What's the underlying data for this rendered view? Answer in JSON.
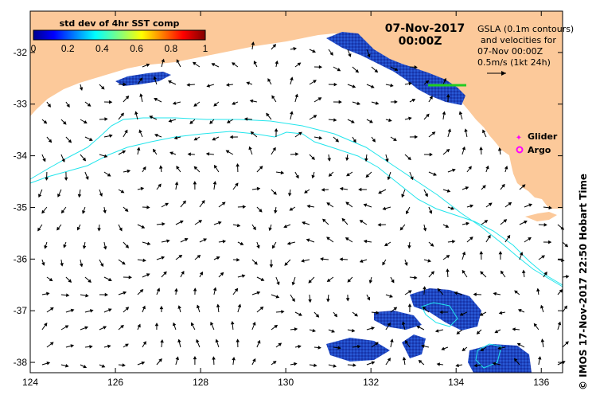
{
  "map": {
    "lon_ticks": [
      "124",
      "126",
      "128",
      "130",
      "132",
      "134",
      "136"
    ],
    "lat_ticks": [
      "-32",
      "-33",
      "-34",
      "-35",
      "-36",
      "-37",
      "-38"
    ],
    "lon_range": [
      124,
      136.5
    ],
    "lat_range": [
      -38.2,
      -31.2
    ]
  },
  "colorbar": {
    "title": "std dev of 4hr SST comp",
    "tick_labels": [
      "0",
      "0.2",
      "0.4",
      "0.6",
      "0.8",
      "1"
    ],
    "range": [
      0,
      1
    ]
  },
  "datetime": {
    "date": "07-Nov-2017",
    "time": "00:00Z"
  },
  "info": {
    "line1": "GSLA (0.1m contours)",
    "line2": "and velocities for",
    "line3": "07-Nov 00:00Z",
    "line4": "0.5m/s (1kt 24h)"
  },
  "legend": {
    "glider": "Glider",
    "argo": "Argo"
  },
  "credit": "© IMOS 17-Nov-2017 22:50 Hobart Time",
  "colors": {
    "land": "#fcc99a",
    "ocean": "#ffffff",
    "contour": "#22e5ec",
    "sst_patch": "#1a3fb5",
    "glider_track": "#22cc22",
    "glider_marker": "#ff00ff",
    "argo_marker": "#ff00ff"
  }
}
